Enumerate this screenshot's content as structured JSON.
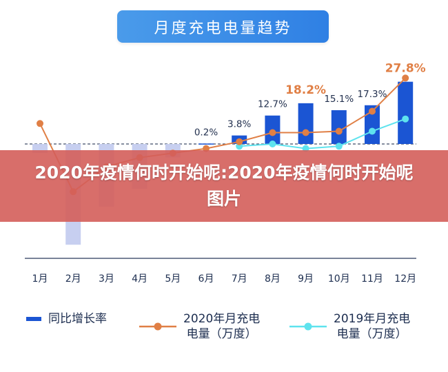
{
  "title": "月度充电电量趋势",
  "overlay_text": "2020年疫情何时开始呢:2020年疫情何时开始呢图片",
  "colors": {
    "bar": "#1b55d3",
    "bar_faded": "#c7cff0",
    "line_2020": "#e07f45",
    "line_2019": "#5ee3ee",
    "title_bg": "#3a8ce8",
    "overlay": "#d45e5a"
  },
  "chart_data": {
    "type": "bar",
    "title": "月度充电电量趋势",
    "categories": [
      "1月",
      "2月",
      "3月",
      "4月",
      "5月",
      "6月",
      "7月",
      "8月",
      "9月",
      "10月",
      "11月",
      "12月"
    ],
    "series": [
      {
        "name": "同比增长率",
        "type": "bar",
        "values": [
          -4,
          -45,
          -28,
          -20,
          -6,
          0.2,
          3.8,
          12.7,
          18.2,
          15.1,
          17.3,
          27.8
        ],
        "labels": [
          "",
          "",
          "",
          "",
          "",
          "0.2%",
          "3.8%",
          "12.7%",
          "18.2%",
          "15.1%",
          "17.3%",
          "27.8%"
        ]
      },
      {
        "name": "2020年月充电电量（万度）",
        "type": "line",
        "values": [
          4.5,
          -10.5,
          -5,
          -3,
          -2,
          -1,
          0.5,
          2.5,
          2.5,
          2.8,
          7.2,
          14.5
        ]
      },
      {
        "name": "2019年月充电电量（万度）",
        "type": "line",
        "values": [
          null,
          null,
          null,
          null,
          null,
          null,
          -0.5,
          0,
          -1,
          -0.5,
          2.8,
          5.5
        ]
      }
    ],
    "ylim": [
      -50,
      32
    ],
    "legend": "bottom"
  },
  "legend": [
    {
      "label": "同比增长率",
      "icon": "bar-swatch-icon"
    },
    {
      "label": "2020年月充电\n电量（万度）",
      "icon": "orange-line-marker-icon"
    },
    {
      "label": "2019年月充电\n电量（万度）",
      "icon": "cyan-line-marker-icon"
    }
  ]
}
